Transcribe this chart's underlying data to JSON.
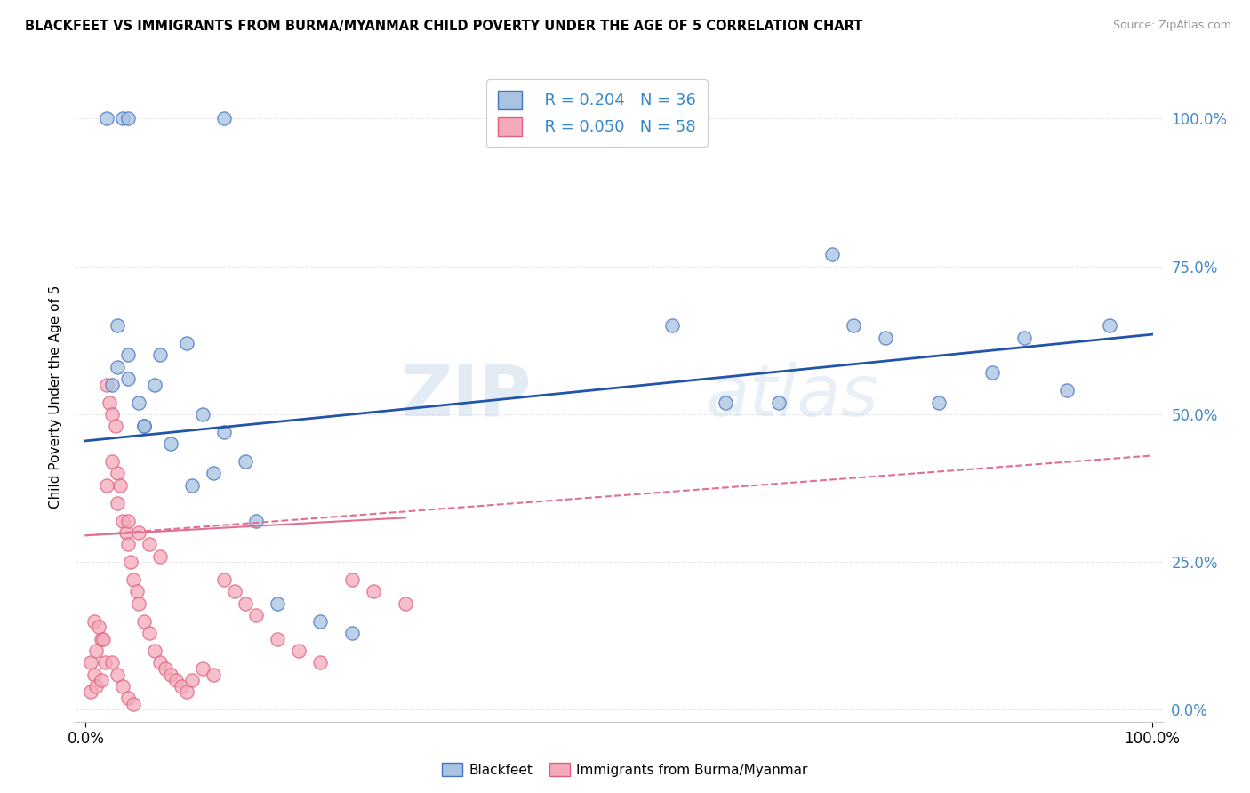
{
  "title": "BLACKFEET VS IMMIGRANTS FROM BURMA/MYANMAR CHILD POVERTY UNDER THE AGE OF 5 CORRELATION CHART",
  "source": "Source: ZipAtlas.com",
  "ylabel": "Child Poverty Under the Age of 5",
  "watermark_zip": "ZIP",
  "watermark_atlas": "atlas",
  "legend_blue_r": "R = 0.204",
  "legend_blue_n": "N = 36",
  "legend_pink_r": "R = 0.050",
  "legend_pink_n": "N = 58",
  "blue_fill": "#A8C4E0",
  "blue_edge": "#4472C4",
  "pink_fill": "#F4AABA",
  "pink_edge": "#E06080",
  "blue_line_color": "#2255AA",
  "pink_line_color": "#E07090",
  "blue_scatter_x": [
    0.02,
    0.035,
    0.04,
    0.13,
    0.025,
    0.03,
    0.04,
    0.05,
    0.055,
    0.065,
    0.07,
    0.03,
    0.04,
    0.055,
    0.08,
    0.095,
    0.11,
    0.13,
    0.16,
    0.55,
    0.6,
    0.65,
    0.7,
    0.72,
    0.75,
    0.8,
    0.85,
    0.88,
    0.92,
    0.96,
    0.1,
    0.12,
    0.15,
    0.18,
    0.22,
    0.25
  ],
  "blue_scatter_y": [
    1.0,
    1.0,
    1.0,
    1.0,
    0.55,
    0.58,
    0.56,
    0.52,
    0.48,
    0.55,
    0.6,
    0.65,
    0.6,
    0.48,
    0.45,
    0.62,
    0.5,
    0.47,
    0.32,
    0.65,
    0.52,
    0.52,
    0.77,
    0.65,
    0.63,
    0.52,
    0.57,
    0.63,
    0.54,
    0.65,
    0.38,
    0.4,
    0.42,
    0.18,
    0.15,
    0.13
  ],
  "pink_scatter_x": [
    0.005,
    0.008,
    0.01,
    0.015,
    0.018,
    0.02,
    0.022,
    0.025,
    0.028,
    0.03,
    0.032,
    0.035,
    0.038,
    0.04,
    0.042,
    0.045,
    0.048,
    0.05,
    0.055,
    0.06,
    0.065,
    0.07,
    0.075,
    0.08,
    0.085,
    0.09,
    0.095,
    0.1,
    0.11,
    0.12,
    0.13,
    0.14,
    0.15,
    0.16,
    0.18,
    0.2,
    0.22,
    0.25,
    0.27,
    0.3,
    0.005,
    0.01,
    0.015,
    0.02,
    0.025,
    0.03,
    0.04,
    0.05,
    0.06,
    0.07,
    0.008,
    0.012,
    0.016,
    0.025,
    0.03,
    0.035,
    0.04,
    0.045
  ],
  "pink_scatter_y": [
    0.08,
    0.06,
    0.1,
    0.12,
    0.08,
    0.55,
    0.52,
    0.5,
    0.48,
    0.4,
    0.38,
    0.32,
    0.3,
    0.28,
    0.25,
    0.22,
    0.2,
    0.18,
    0.15,
    0.13,
    0.1,
    0.08,
    0.07,
    0.06,
    0.05,
    0.04,
    0.03,
    0.05,
    0.07,
    0.06,
    0.22,
    0.2,
    0.18,
    0.16,
    0.12,
    0.1,
    0.08,
    0.22,
    0.2,
    0.18,
    0.03,
    0.04,
    0.05,
    0.38,
    0.42,
    0.35,
    0.32,
    0.3,
    0.28,
    0.26,
    0.15,
    0.14,
    0.12,
    0.08,
    0.06,
    0.04,
    0.02,
    0.01
  ],
  "blue_line": {
    "x0": 0.0,
    "x1": 1.0,
    "y0": 0.455,
    "y1": 0.635
  },
  "pink_solid_line": {
    "x0": 0.0,
    "x1": 0.3,
    "y0": 0.295,
    "y1": 0.325
  },
  "pink_dash_line": {
    "x0": 0.0,
    "x1": 1.0,
    "y0": 0.295,
    "y1": 0.43
  },
  "xlim": [
    -0.01,
    1.01
  ],
  "ylim": [
    -0.02,
    1.08
  ],
  "yticks": [
    0.0,
    0.25,
    0.5,
    0.75,
    1.0
  ],
  "ytick_labels": [
    "0.0%",
    "25.0%",
    "50.0%",
    "75.0%",
    "100.0%"
  ],
  "xtick_labels": [
    "0.0%",
    "100.0%"
  ],
  "background_color": "#FFFFFF",
  "grid_color": "#E8E8E8"
}
